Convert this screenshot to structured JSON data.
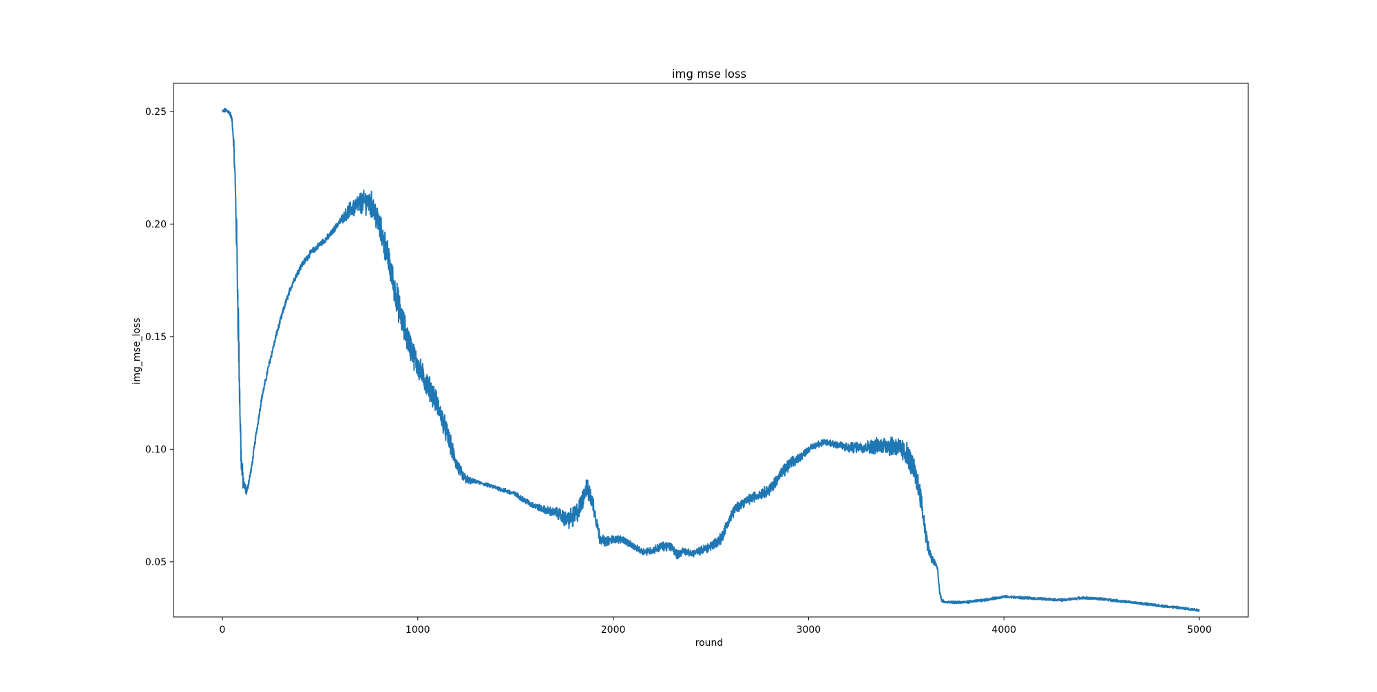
{
  "chart_data": {
    "type": "line",
    "title": "img mse loss",
    "xlabel": "round",
    "ylabel": "img_mse_loss",
    "xlim": [
      -250,
      5250
    ],
    "ylim": [
      0.0255,
      0.2625
    ],
    "xticks": [
      0,
      1000,
      2000,
      3000,
      4000,
      5000
    ],
    "xtick_labels": [
      "0",
      "1000",
      "2000",
      "3000",
      "4000",
      "5000"
    ],
    "yticks": [
      0.05,
      0.1,
      0.15,
      0.2,
      0.25
    ],
    "ytick_labels": [
      "0.05",
      "0.10",
      "0.15",
      "0.20",
      "0.25"
    ],
    "grid": false,
    "legend": "none",
    "series": [
      {
        "color": "#1f77b4",
        "noise_profile": [
          [
            0,
            0.001
          ],
          [
            50,
            0.002
          ],
          [
            60,
            0.005
          ],
          [
            70,
            0.012
          ],
          [
            80,
            0.02
          ],
          [
            95,
            0.012
          ],
          [
            110,
            0.004
          ],
          [
            130,
            0.002
          ],
          [
            600,
            0.002
          ],
          [
            650,
            0.005
          ],
          [
            700,
            0.007
          ],
          [
            800,
            0.009
          ],
          [
            900,
            0.01
          ],
          [
            1000,
            0.008
          ],
          [
            1150,
            0.007
          ],
          [
            1250,
            0.003
          ],
          [
            1300,
            0.001
          ],
          [
            1600,
            0.002
          ],
          [
            1700,
            0.003
          ],
          [
            1800,
            0.007
          ],
          [
            1900,
            0.006
          ],
          [
            1950,
            0.003
          ],
          [
            2100,
            0.002
          ],
          [
            2300,
            0.003
          ],
          [
            2400,
            0.002
          ],
          [
            2550,
            0.004
          ],
          [
            2650,
            0.003
          ],
          [
            2900,
            0.004
          ],
          [
            3000,
            0.002
          ],
          [
            3200,
            0.003
          ],
          [
            3300,
            0.004
          ],
          [
            3400,
            0.006
          ],
          [
            3500,
            0.008
          ],
          [
            3580,
            0.007
          ],
          [
            3620,
            0.004
          ],
          [
            3650,
            0.002
          ],
          [
            3700,
            0.0008
          ],
          [
            5000,
            0.0008
          ]
        ],
        "points": [
          [
            0,
            0.25
          ],
          [
            15,
            0.2505
          ],
          [
            30,
            0.25
          ],
          [
            40,
            0.249
          ],
          [
            50,
            0.246
          ],
          [
            58,
            0.236
          ],
          [
            65,
            0.22
          ],
          [
            70,
            0.205
          ],
          [
            75,
            0.185
          ],
          [
            80,
            0.165
          ],
          [
            85,
            0.14
          ],
          [
            90,
            0.118
          ],
          [
            95,
            0.1
          ],
          [
            100,
            0.09
          ],
          [
            110,
            0.084
          ],
          [
            125,
            0.081
          ],
          [
            150,
            0.092
          ],
          [
            170,
            0.105
          ],
          [
            200,
            0.122
          ],
          [
            240,
            0.138
          ],
          [
            280,
            0.152
          ],
          [
            320,
            0.164
          ],
          [
            360,
            0.174
          ],
          [
            400,
            0.181
          ],
          [
            450,
            0.187
          ],
          [
            500,
            0.191
          ],
          [
            550,
            0.195
          ],
          [
            600,
            0.201
          ],
          [
            650,
            0.206
          ],
          [
            700,
            0.209
          ],
          [
            740,
            0.21
          ],
          [
            770,
            0.208
          ],
          [
            800,
            0.2
          ],
          [
            840,
            0.188
          ],
          [
            880,
            0.172
          ],
          [
            920,
            0.157
          ],
          [
            960,
            0.146
          ],
          [
            1000,
            0.137
          ],
          [
            1040,
            0.13
          ],
          [
            1080,
            0.124
          ],
          [
            1120,
            0.115
          ],
          [
            1160,
            0.104
          ],
          [
            1200,
            0.093
          ],
          [
            1230,
            0.088
          ],
          [
            1260,
            0.086
          ],
          [
            1300,
            0.0855
          ],
          [
            1400,
            0.083
          ],
          [
            1500,
            0.08
          ],
          [
            1580,
            0.0755
          ],
          [
            1650,
            0.073
          ],
          [
            1720,
            0.0715
          ],
          [
            1760,
            0.0685
          ],
          [
            1800,
            0.07
          ],
          [
            1830,
            0.074
          ],
          [
            1860,
            0.083
          ],
          [
            1880,
            0.08
          ],
          [
            1900,
            0.075
          ],
          [
            1930,
            0.061
          ],
          [
            1960,
            0.059
          ],
          [
            2000,
            0.06
          ],
          [
            2050,
            0.06
          ],
          [
            2100,
            0.057
          ],
          [
            2150,
            0.0545
          ],
          [
            2200,
            0.055
          ],
          [
            2250,
            0.057
          ],
          [
            2300,
            0.0565
          ],
          [
            2330,
            0.053
          ],
          [
            2360,
            0.055
          ],
          [
            2400,
            0.0535
          ],
          [
            2450,
            0.055
          ],
          [
            2500,
            0.057
          ],
          [
            2550,
            0.06
          ],
          [
            2580,
            0.066
          ],
          [
            2620,
            0.073
          ],
          [
            2660,
            0.076
          ],
          [
            2700,
            0.078
          ],
          [
            2750,
            0.08
          ],
          [
            2800,
            0.082
          ],
          [
            2850,
            0.088
          ],
          [
            2900,
            0.093
          ],
          [
            2950,
            0.096
          ],
          [
            3000,
            0.1
          ],
          [
            3050,
            0.1025
          ],
          [
            3100,
            0.103
          ],
          [
            3150,
            0.102
          ],
          [
            3200,
            0.1005
          ],
          [
            3250,
            0.101
          ],
          [
            3300,
            0.101
          ],
          [
            3350,
            0.1015
          ],
          [
            3400,
            0.102
          ],
          [
            3450,
            0.101
          ],
          [
            3500,
            0.098
          ],
          [
            3540,
            0.091
          ],
          [
            3570,
            0.081
          ],
          [
            3590,
            0.068
          ],
          [
            3610,
            0.057
          ],
          [
            3630,
            0.051
          ],
          [
            3650,
            0.049
          ],
          [
            3660,
            0.047
          ],
          [
            3670,
            0.037
          ],
          [
            3680,
            0.033
          ],
          [
            3700,
            0.032
          ],
          [
            3800,
            0.032
          ],
          [
            3900,
            0.033
          ],
          [
            4000,
            0.0345
          ],
          [
            4100,
            0.034
          ],
          [
            4200,
            0.0335
          ],
          [
            4300,
            0.033
          ],
          [
            4400,
            0.034
          ],
          [
            4500,
            0.0335
          ],
          [
            4600,
            0.0325
          ],
          [
            4700,
            0.0315
          ],
          [
            4800,
            0.0305
          ],
          [
            4900,
            0.0295
          ],
          [
            5000,
            0.0285
          ]
        ]
      }
    ]
  }
}
